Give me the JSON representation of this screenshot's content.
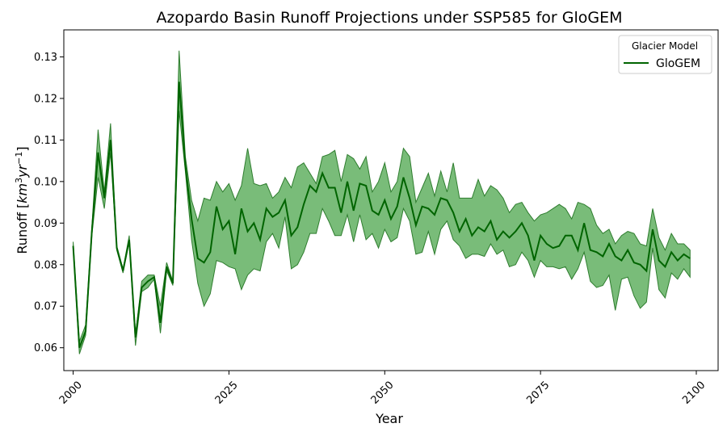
{
  "chart_data": {
    "type": "line",
    "title": "Azopardo Basin Runoff Projections under SSP585 for GloGEM",
    "xlabel": "Year",
    "ylabel_parts": [
      "Runoff [",
      "km",
      "3",
      "yr",
      "−1",
      "]"
    ],
    "xlim": [
      1998.5,
      2103.5
    ],
    "ylim": [
      0.0545,
      0.1365
    ],
    "xticks": [
      2000,
      2025,
      2050,
      2075,
      2100
    ],
    "xtick_labels": [
      "2000",
      "2025",
      "2050",
      "2075",
      "2100"
    ],
    "yticks": [
      0.06,
      0.07,
      0.08,
      0.09,
      0.1,
      0.11,
      0.12,
      0.13
    ],
    "ytick_labels": [
      "0.06",
      "0.07",
      "0.08",
      "0.09",
      "0.10",
      "0.11",
      "0.12",
      "0.13"
    ],
    "grid": false,
    "legend": {
      "title": "Glacier Model",
      "placement": "top-right",
      "entries": [
        "GloGEM"
      ]
    },
    "colors": {
      "line": "#006400",
      "band": "#4CA64C",
      "band_edge": "#2E7D2E"
    },
    "series": [
      {
        "name": "GloGEM",
        "x": [
          2000,
          2001,
          2002,
          2003,
          2004,
          2005,
          2006,
          2007,
          2008,
          2009,
          2010,
          2011,
          2012,
          2013,
          2014,
          2015,
          2016,
          2017,
          2018,
          2019,
          2020,
          2021,
          2022,
          2023,
          2024,
          2025,
          2026,
          2027,
          2028,
          2029,
          2030,
          2031,
          2032,
          2033,
          2034,
          2035,
          2036,
          2037,
          2038,
          2039,
          2040,
          2041,
          2042,
          2043,
          2044,
          2045,
          2046,
          2047,
          2048,
          2049,
          2050,
          2051,
          2052,
          2053,
          2054,
          2055,
          2056,
          2057,
          2058,
          2059,
          2060,
          2061,
          2062,
          2063,
          2064,
          2065,
          2066,
          2067,
          2068,
          2069,
          2070,
          2071,
          2072,
          2073,
          2074,
          2075,
          2076,
          2077,
          2078,
          2079,
          2080,
          2081,
          2082,
          2083,
          2084,
          2085,
          2086,
          2087,
          2088,
          2089,
          2090,
          2091,
          2092,
          2093,
          2094,
          2095,
          2096,
          2097,
          2098,
          2099
        ],
        "values": [
          0.0845,
          0.06,
          0.064,
          0.088,
          0.107,
          0.096,
          0.11,
          0.084,
          0.0785,
          0.086,
          0.0625,
          0.0745,
          0.076,
          0.077,
          0.066,
          0.0795,
          0.0755,
          0.124,
          0.104,
          0.091,
          0.0815,
          0.0805,
          0.083,
          0.094,
          0.0885,
          0.0905,
          0.0825,
          0.0935,
          0.088,
          0.09,
          0.086,
          0.0935,
          0.0915,
          0.0925,
          0.0955,
          0.087,
          0.089,
          0.0945,
          0.099,
          0.0975,
          0.102,
          0.0985,
          0.0985,
          0.0925,
          0.1,
          0.093,
          0.0995,
          0.099,
          0.093,
          0.092,
          0.0955,
          0.091,
          0.094,
          0.101,
          0.096,
          0.0895,
          0.094,
          0.0935,
          0.092,
          0.096,
          0.0955,
          0.0925,
          0.088,
          0.091,
          0.087,
          0.089,
          0.088,
          0.0905,
          0.086,
          0.088,
          0.0865,
          0.088,
          0.09,
          0.087,
          0.081,
          0.087,
          0.085,
          0.084,
          0.0845,
          0.087,
          0.087,
          0.0835,
          0.09,
          0.0835,
          0.083,
          0.082,
          0.085,
          0.082,
          0.081,
          0.0835,
          0.0805,
          0.08,
          0.0785,
          0.0885,
          0.081,
          0.0795,
          0.083,
          0.081,
          0.0825,
          0.0815
        ],
        "upper": [
          0.0855,
          0.0615,
          0.0655,
          0.089,
          0.1125,
          0.0975,
          0.114,
          0.0845,
          0.079,
          0.087,
          0.063,
          0.076,
          0.0775,
          0.0775,
          0.07,
          0.0805,
          0.076,
          0.1315,
          0.106,
          0.0955,
          0.0905,
          0.096,
          0.0955,
          0.1,
          0.0975,
          0.0995,
          0.0955,
          0.099,
          0.108,
          0.0995,
          0.099,
          0.0995,
          0.096,
          0.0975,
          0.101,
          0.0985,
          0.1035,
          0.1045,
          0.102,
          0.0995,
          0.106,
          0.1065,
          0.1075,
          0.1,
          0.1065,
          0.1055,
          0.103,
          0.106,
          0.0975,
          0.1,
          0.1045,
          0.0975,
          0.1,
          0.108,
          0.106,
          0.095,
          0.0985,
          0.102,
          0.0965,
          0.1025,
          0.0975,
          0.1045,
          0.096,
          0.096,
          0.096,
          0.1005,
          0.0965,
          0.099,
          0.098,
          0.096,
          0.0925,
          0.0945,
          0.095,
          0.0925,
          0.0905,
          0.092,
          0.0925,
          0.0935,
          0.0945,
          0.0935,
          0.091,
          0.095,
          0.0945,
          0.0935,
          0.0895,
          0.0875,
          0.0885,
          0.085,
          0.087,
          0.088,
          0.0875,
          0.085,
          0.0845,
          0.0935,
          0.0865,
          0.0835,
          0.0875,
          0.085,
          0.085,
          0.0835
        ],
        "lower": [
          0.084,
          0.0585,
          0.063,
          0.087,
          0.101,
          0.0935,
          0.107,
          0.0835,
          0.078,
          0.0855,
          0.0605,
          0.0735,
          0.0745,
          0.0765,
          0.0635,
          0.0785,
          0.075,
          0.117,
          0.1025,
          0.086,
          0.0755,
          0.07,
          0.073,
          0.081,
          0.0805,
          0.0795,
          0.079,
          0.074,
          0.0775,
          0.079,
          0.0785,
          0.0855,
          0.0875,
          0.084,
          0.0915,
          0.079,
          0.08,
          0.083,
          0.0875,
          0.0875,
          0.0935,
          0.0905,
          0.087,
          0.087,
          0.092,
          0.0855,
          0.092,
          0.086,
          0.0875,
          0.084,
          0.0885,
          0.0855,
          0.0865,
          0.0935,
          0.0905,
          0.0825,
          0.083,
          0.088,
          0.0825,
          0.0885,
          0.0905,
          0.086,
          0.0845,
          0.0815,
          0.0825,
          0.0825,
          0.082,
          0.085,
          0.0825,
          0.0835,
          0.0795,
          0.08,
          0.083,
          0.081,
          0.077,
          0.081,
          0.0795,
          0.0795,
          0.079,
          0.0795,
          0.0765,
          0.079,
          0.083,
          0.076,
          0.0745,
          0.075,
          0.0775,
          0.069,
          0.0765,
          0.077,
          0.0725,
          0.0695,
          0.071,
          0.084,
          0.074,
          0.072,
          0.078,
          0.0765,
          0.079,
          0.077
        ]
      }
    ]
  }
}
